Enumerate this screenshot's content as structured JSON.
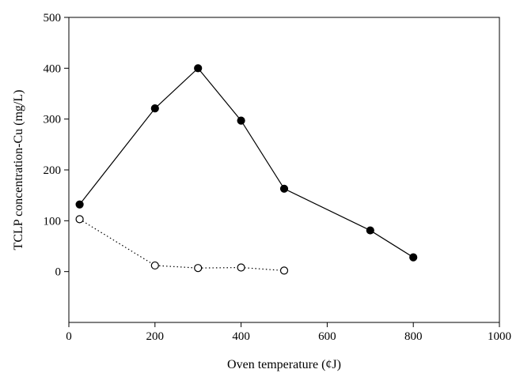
{
  "chart_data": {
    "type": "line",
    "title": "",
    "xlabel": "Oven temperature (¢J)",
    "ylabel": "TCLP concentration-Cu (mg/L)",
    "xlim": [
      0,
      1000
    ],
    "ylim": [
      -100,
      500
    ],
    "x_ticks": [
      0,
      200,
      400,
      600,
      800,
      1000
    ],
    "y_ticks": [
      0,
      100,
      200,
      300,
      400,
      500
    ],
    "grid": false,
    "legend": "none",
    "series": [
      {
        "marker": "filled-circle",
        "line_style": "solid",
        "color": "#000000",
        "x": [
          25,
          200,
          300,
          400,
          500,
          700,
          800
        ],
        "y": [
          132,
          321,
          400,
          297,
          163,
          81,
          28
        ]
      },
      {
        "marker": "open-circle",
        "line_style": "dotted",
        "color": "#000000",
        "x": [
          25,
          200,
          300,
          400,
          500
        ],
        "y": [
          103,
          12,
          7,
          8,
          2
        ]
      }
    ]
  }
}
